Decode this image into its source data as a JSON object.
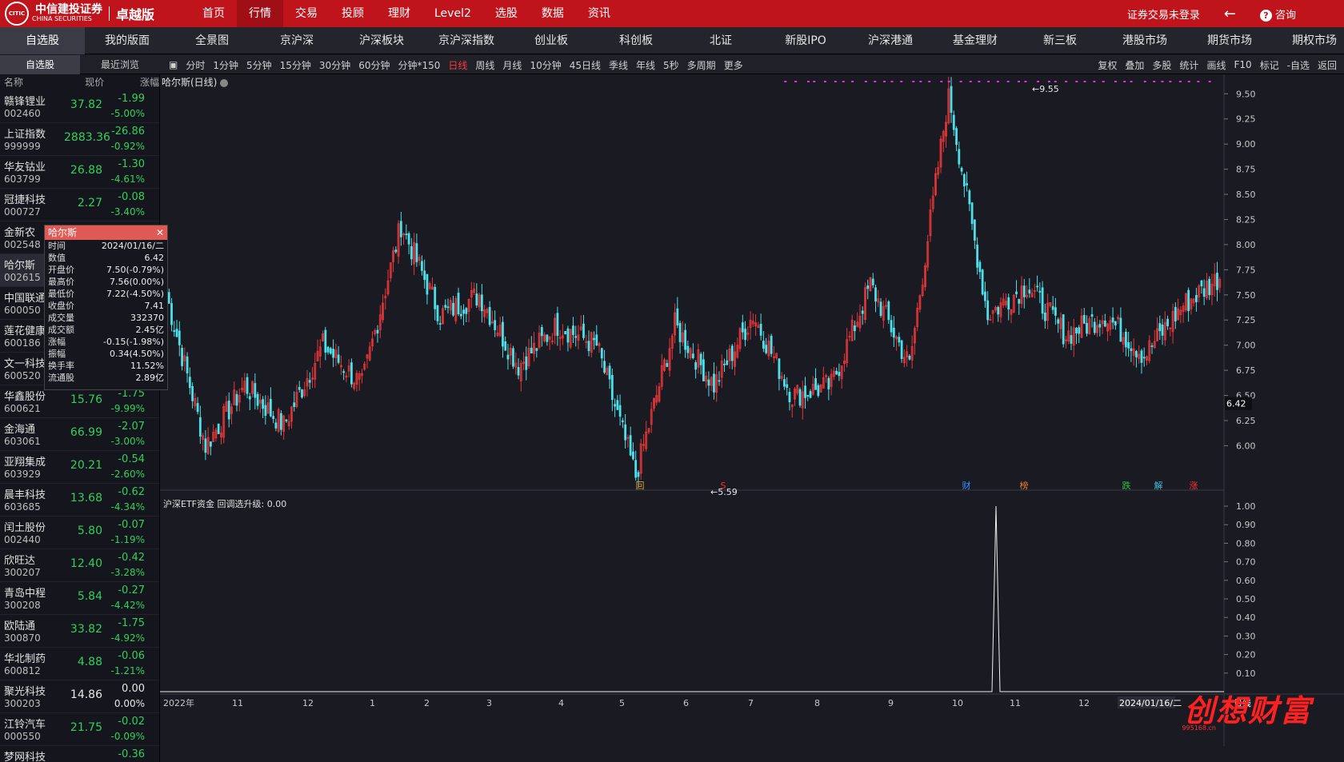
{
  "topbar": {
    "logo_mark": "CITIC",
    "logo_cn": "中信建投证券",
    "logo_en": "CHINA SECURITIES",
    "edition": "卓越版",
    "nav": [
      "首页",
      "行情",
      "交易",
      "投顾",
      "理财",
      "Level2",
      "选股",
      "数据",
      "资讯"
    ],
    "active_nav": 1,
    "login_status": "证券交易未登录",
    "consult": "咨询"
  },
  "secnav": [
    "自选股",
    "我的版面",
    "全景图",
    "京沪深",
    "沪深板块",
    "京沪深指数",
    "创业板",
    "科创板",
    "北证",
    "新股IPO",
    "沪深港通",
    "基金理财",
    "新三板",
    "港股市场",
    "期货市场",
    "期权市场"
  ],
  "subtabs": [
    "自选股",
    "最近浏览"
  ],
  "periods": [
    "分时",
    "1分钟",
    "5分钟",
    "15分钟",
    "30分钟",
    "60分钟",
    "分钟*150",
    "日线",
    "周线",
    "月线",
    "10分钟",
    "45日线",
    "季线",
    "年线",
    "5秒",
    "多周期",
    "更多"
  ],
  "active_period": "日线",
  "right_tools": [
    "复权",
    "叠加",
    "多股",
    "统计",
    "画线",
    "F10",
    "标记",
    "-自选",
    "返回"
  ],
  "list_header": {
    "name": "名称",
    "price": "现价",
    "change": "涨幅"
  },
  "stocks": [
    {
      "name": "赣锋锂业",
      "code": "002460",
      "price": "37.82",
      "chg": "-1.99",
      "pct": "-5.00%"
    },
    {
      "name": "上证指数",
      "code": "999999",
      "price": "2883.36",
      "chg": "-26.86",
      "pct": "-0.92%"
    },
    {
      "name": "华友钴业",
      "code": "603799",
      "price": "26.88",
      "chg": "-1.30",
      "pct": "-4.61%"
    },
    {
      "name": "冠捷科技",
      "code": "000727",
      "price": "2.27",
      "chg": "-0.08",
      "pct": "-3.40%"
    },
    {
      "name": "金新农",
      "code": "002548",
      "price": "",
      "chg": "",
      "pct": ""
    },
    {
      "name": "哈尔斯",
      "code": "002615",
      "price": "",
      "chg": "",
      "pct": ""
    },
    {
      "name": "中国联通",
      "code": "600050",
      "price": "",
      "chg": "",
      "pct": ""
    },
    {
      "name": "莲花健康",
      "code": "600186",
      "price": "",
      "chg": "",
      "pct": ""
    },
    {
      "name": "文一科技",
      "code": "600520",
      "price": "",
      "chg": "",
      "pct": ""
    },
    {
      "name": "华鑫股份",
      "code": "600621",
      "price": "15.76",
      "chg": "-1.75",
      "pct": "-9.99%"
    },
    {
      "name": "金海通",
      "code": "603061",
      "price": "66.99",
      "chg": "-2.07",
      "pct": "-3.00%"
    },
    {
      "name": "亚翔集成",
      "code": "603929",
      "price": "20.21",
      "chg": "-0.54",
      "pct": "-2.60%"
    },
    {
      "name": "晨丰科技",
      "code": "603685",
      "price": "13.68",
      "chg": "-0.62",
      "pct": "-4.34%"
    },
    {
      "name": "闰土股份",
      "code": "002440",
      "price": "5.80",
      "chg": "-0.07",
      "pct": "-1.19%"
    },
    {
      "name": "欣旺达",
      "code": "300207",
      "price": "12.40",
      "chg": "-0.42",
      "pct": "-3.28%"
    },
    {
      "name": "青岛中程",
      "code": "300208",
      "price": "5.84",
      "chg": "-0.27",
      "pct": "-4.42%"
    },
    {
      "name": "欧陆通",
      "code": "300870",
      "price": "33.82",
      "chg": "-1.75",
      "pct": "-4.92%"
    },
    {
      "name": "华北制药",
      "code": "600812",
      "price": "4.88",
      "chg": "-0.06",
      "pct": "-1.21%"
    },
    {
      "name": "聚光科技",
      "code": "300203",
      "price": "14.86",
      "chg": "0.00",
      "pct": "0.00%"
    },
    {
      "name": "江铃汽车",
      "code": "000550",
      "price": "21.75",
      "chg": "-0.02",
      "pct": "-0.09%"
    },
    {
      "name": "梦网科技",
      "code": "",
      "price": "",
      "chg": "-0.36",
      "pct": ""
    }
  ],
  "chart_title": "哈尔斯(日线)",
  "tooltip": {
    "title": "哈尔斯",
    "rows": [
      {
        "k": "时间",
        "v": "2024/01/16/二",
        "c": "w"
      },
      {
        "k": "数值",
        "v": "6.42",
        "c": "w"
      },
      {
        "k": "开盘价",
        "v": "7.50(-0.79%)",
        "c": "g"
      },
      {
        "k": "最高价",
        "v": "7.56(0.00%)",
        "c": "w"
      },
      {
        "k": "最低价",
        "v": "7.22(-4.50%)",
        "c": "g"
      },
      {
        "k": "收盘价",
        "v": "7.41",
        "c": "g"
      },
      {
        "k": "成交量",
        "v": "332370",
        "c": "w"
      },
      {
        "k": "成交额",
        "v": "2.45亿",
        "c": "w"
      },
      {
        "k": "涨幅",
        "v": "-0.15(-1.98%)",
        "c": "g"
      },
      {
        "k": "振幅",
        "v": "0.34(4.50%)",
        "c": "w"
      },
      {
        "k": "换手率",
        "v": "11.52%",
        "c": "w"
      },
      {
        "k": "流通股",
        "v": "2.89亿",
        "c": "w"
      }
    ]
  },
  "price_ticks": [
    "9.50",
    "9.25",
    "9.00",
    "8.75",
    "8.50",
    "8.25",
    "8.00",
    "7.75",
    "7.50",
    "7.25",
    "7.00",
    "6.75",
    "6.50",
    "6.25",
    "6.00"
  ],
  "current_value_label": "6.42",
  "high_label": "9.55",
  "low_label": "5.59",
  "event_markers": [
    {
      "t": "回",
      "c": "#e0a030"
    },
    {
      "t": "S",
      "c": "#ff3030"
    },
    {
      "t": "财",
      "c": "#3a8fff"
    },
    {
      "t": "榜",
      "c": "#e08030"
    },
    {
      "t": "跌",
      "c": "#30c040"
    },
    {
      "t": "解",
      "c": "#40c0e0"
    },
    {
      "t": "涨",
      "c": "#ff3030"
    }
  ],
  "indicator_title": "沪深ETF资金 回调选升级: 0.00",
  "indicator_ticks": [
    "1.00",
    "0.90",
    "0.80",
    "0.70",
    "0.60",
    "0.50",
    "0.40",
    "0.30",
    "0.20",
    "0.10"
  ],
  "x_labels": [
    "2022年",
    "11",
    "12",
    "1",
    "2",
    "3",
    "4",
    "5",
    "6",
    "7",
    "8",
    "9",
    "10",
    "11",
    "12"
  ],
  "cursor_date": "2024/01/16/二",
  "period_label": "日线",
  "watermark": "创想财富",
  "watermark_url": "995168.cn",
  "chart_data": {
    "type": "candlestick",
    "symbol": "哈尔斯",
    "ylim": [
      5.59,
      9.55
    ],
    "high": 9.55,
    "low": 5.59,
    "segments": [
      [
        7.5,
        6.0
      ],
      [
        6.0,
        6.6
      ],
      [
        6.6,
        6.2
      ],
      [
        6.2,
        7.0
      ],
      [
        7.0,
        6.6
      ],
      [
        6.6,
        8.2
      ],
      [
        8.2,
        7.3
      ],
      [
        7.3,
        7.5
      ],
      [
        7.5,
        6.8
      ],
      [
        6.8,
        7.2
      ],
      [
        7.2,
        7.0
      ],
      [
        7.0,
        5.7
      ],
      [
        5.7,
        7.2
      ],
      [
        7.2,
        6.6
      ],
      [
        6.6,
        7.3
      ],
      [
        7.3,
        6.5
      ],
      [
        6.5,
        6.6
      ],
      [
        6.6,
        7.6
      ],
      [
        7.6,
        6.8
      ],
      [
        6.8,
        9.5
      ],
      [
        9.5,
        7.3
      ],
      [
        7.3,
        7.6
      ],
      [
        7.6,
        7.1
      ],
      [
        7.1,
        7.3
      ],
      [
        7.3,
        6.9
      ],
      [
        6.9,
        7.4
      ],
      [
        7.4,
        7.7
      ]
    ],
    "indicator": {
      "ylim": [
        0,
        1
      ],
      "spike_value": 1.0
    }
  }
}
